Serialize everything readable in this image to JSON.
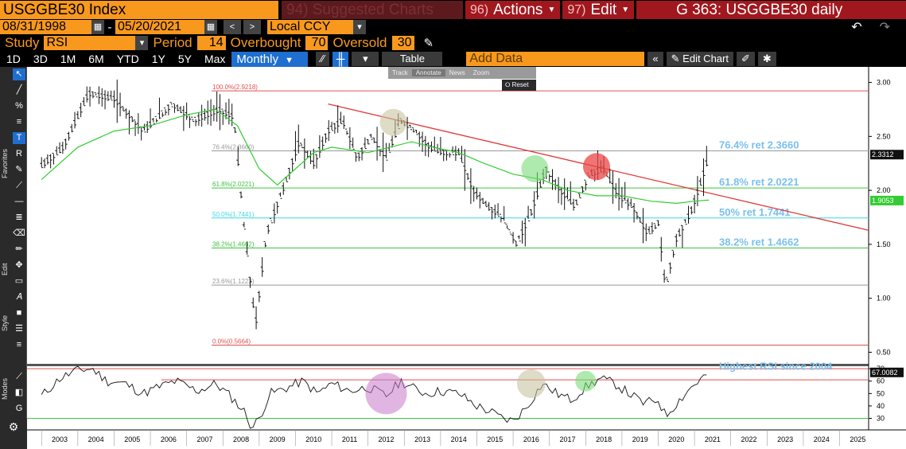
{
  "header": {
    "ticker": "USGGBE30 Index",
    "suggested": "94) Suggested Charts",
    "actions_num": "96)",
    "actions_label": "Actions",
    "edit_num": "97)",
    "edit_label": "Edit",
    "chart_id": "G 363: USGGBE30 daily"
  },
  "dates": {
    "start": "08/31/1998",
    "sep": "-",
    "end": "05/20/2021",
    "currency": "Local CCY"
  },
  "study": {
    "study_label": "Study",
    "study_value": "RSI",
    "period_label": "Period",
    "period_value": "14",
    "overbought_label": "Overbought",
    "overbought_value": "70",
    "oversold_label": "Oversold",
    "oversold_value": "30"
  },
  "toolbar": {
    "ranges": [
      "1D",
      "3D",
      "1M",
      "6M",
      "YTD",
      "1Y",
      "5Y",
      "Max"
    ],
    "frequency": "Monthly",
    "table_label": "Table",
    "add_data_placeholder": "Add Data",
    "edit_chart_label": "Edit Chart"
  },
  "floating_bar": {
    "track": "Track",
    "annotate": "Annotate",
    "news": "News",
    "zoom": "Zoom",
    "reset": "Reset"
  },
  "sidebar": {
    "favorites_label": "Favorites",
    "edit_label": "Edit",
    "style_label": "Style",
    "modes_label": "Modes"
  },
  "chart_data": {
    "type": "candlestick",
    "xlabels": [
      "2003",
      "2004",
      "2005",
      "2006",
      "2007",
      "2008",
      "2009",
      "2010",
      "2011",
      "2012",
      "2013",
      "2014",
      "2015",
      "2016",
      "2017",
      "2018",
      "2019",
      "2020",
      "2021",
      "2022",
      "2023",
      "2024",
      "2025"
    ],
    "price_ticks": [
      "3.00",
      "2.50",
      "2.00",
      "1.50",
      "1.00",
      "0.50"
    ],
    "rsi_ticks": [
      "70",
      "60",
      "50",
      "40",
      "30"
    ],
    "fib_levels": [
      {
        "label": "100.0%(2.9218)",
        "value": 2.9218,
        "color": "#e05050"
      },
      {
        "label": "76.4%(2.3660)",
        "value": 2.366,
        "color": "#999999"
      },
      {
        "label": "61.8%(2.0221)",
        "value": 2.0221,
        "color": "#3ec43e"
      },
      {
        "label": "50.0%(1.7441)",
        "value": 1.7441,
        "color": "#3ad8e8"
      },
      {
        "label": "38.2%(1.4662)",
        "value": 1.4662,
        "color": "#3ec43e"
      },
      {
        "label": "23.6%(1.1223)",
        "value": 1.1223,
        "color": "#999999"
      },
      {
        "label": "0.0%(0.5664)",
        "value": 0.5664,
        "color": "#e05050"
      }
    ],
    "ret_annotations": [
      {
        "text": "76.4% ret 2.3660",
        "value": 2.366
      },
      {
        "text": "61.8% ret 2.0221",
        "value": 2.0221
      },
      {
        "text": "50% ret 1.7441",
        "value": 1.7441
      },
      {
        "text": "38.2% ret 1.4662",
        "value": 1.4662
      }
    ],
    "last_price": "2.3312",
    "ma_price": "1.9053",
    "last_rsi": "67.0082",
    "rsi_annotation": "Highest RSI since 2004",
    "price_series": [
      [
        2003.0,
        2.23
      ],
      [
        2003.6,
        2.4
      ],
      [
        2004.3,
        2.9
      ],
      [
        2005.0,
        2.85
      ],
      [
        2005.8,
        2.55
      ],
      [
        2006.6,
        2.8
      ],
      [
        2007.2,
        2.65
      ],
      [
        2007.9,
        2.75
      ],
      [
        2008.3,
        2.68
      ],
      [
        2008.6,
        1.6
      ],
      [
        2008.9,
        0.75
      ],
      [
        2009.2,
        1.6
      ],
      [
        2009.7,
        2.05
      ],
      [
        2010.1,
        2.45
      ],
      [
        2010.5,
        2.25
      ],
      [
        2010.9,
        2.55
      ],
      [
        2011.3,
        2.65
      ],
      [
        2011.7,
        2.3
      ],
      [
        2012.1,
        2.5
      ],
      [
        2012.5,
        2.3
      ],
      [
        2012.9,
        2.65
      ],
      [
        2013.3,
        2.55
      ],
      [
        2013.7,
        2.4
      ],
      [
        2014.1,
        2.35
      ],
      [
        2014.5,
        2.35
      ],
      [
        2014.9,
        2.0
      ],
      [
        2015.3,
        1.85
      ],
      [
        2015.7,
        1.75
      ],
      [
        2016.1,
        1.5
      ],
      [
        2016.5,
        1.8
      ],
      [
        2016.9,
        2.2
      ],
      [
        2017.3,
        2.0
      ],
      [
        2017.7,
        1.85
      ],
      [
        2018.1,
        2.15
      ],
      [
        2018.5,
        2.2
      ],
      [
        2018.9,
        1.95
      ],
      [
        2019.3,
        1.85
      ],
      [
        2019.7,
        1.6
      ],
      [
        2020.0,
        1.7
      ],
      [
        2020.2,
        1.1
      ],
      [
        2020.5,
        1.55
      ],
      [
        2020.9,
        1.8
      ],
      [
        2021.2,
        2.1
      ],
      [
        2021.4,
        2.33
      ]
    ],
    "ma_series": [
      [
        2003.0,
        2.1
      ],
      [
        2004.0,
        2.4
      ],
      [
        2005.0,
        2.55
      ],
      [
        2006.0,
        2.6
      ],
      [
        2007.0,
        2.7
      ],
      [
        2007.8,
        2.75
      ],
      [
        2008.4,
        2.6
      ],
      [
        2009.0,
        2.2
      ],
      [
        2009.5,
        2.05
      ],
      [
        2010.0,
        2.2
      ],
      [
        2010.5,
        2.35
      ],
      [
        2011.0,
        2.4
      ],
      [
        2012.0,
        2.35
      ],
      [
        2012.6,
        2.4
      ],
      [
        2013.2,
        2.45
      ],
      [
        2013.8,
        2.4
      ],
      [
        2014.5,
        2.35
      ],
      [
        2015.2,
        2.25
      ],
      [
        2016.0,
        2.15
      ],
      [
        2016.8,
        2.1
      ],
      [
        2017.5,
        2.0
      ],
      [
        2018.3,
        1.95
      ],
      [
        2019.0,
        1.95
      ],
      [
        2019.8,
        1.9
      ],
      [
        2020.5,
        1.88
      ],
      [
        2021.0,
        1.9
      ],
      [
        2021.4,
        1.91
      ]
    ],
    "rsi_series": [
      [
        2003.0,
        48
      ],
      [
        2003.5,
        62
      ],
      [
        2004.0,
        69
      ],
      [
        2004.4,
        70
      ],
      [
        2004.8,
        60
      ],
      [
        2005.3,
        58
      ],
      [
        2005.8,
        50
      ],
      [
        2006.2,
        55
      ],
      [
        2006.7,
        60
      ],
      [
        2007.3,
        52
      ],
      [
        2007.8,
        58
      ],
      [
        2008.2,
        48
      ],
      [
        2008.6,
        35
      ],
      [
        2008.8,
        22
      ],
      [
        2009.0,
        30
      ],
      [
        2009.3,
        50
      ],
      [
        2009.8,
        55
      ],
      [
        2010.2,
        60
      ],
      [
        2010.6,
        50
      ],
      [
        2011.0,
        58
      ],
      [
        2011.5,
        52
      ],
      [
        2012.0,
        55
      ],
      [
        2012.5,
        48
      ],
      [
        2012.9,
        60
      ],
      [
        2013.2,
        55
      ],
      [
        2013.6,
        50
      ],
      [
        2014.0,
        52
      ],
      [
        2014.5,
        50
      ],
      [
        2015.0,
        40
      ],
      [
        2015.4,
        35
      ],
      [
        2015.7,
        30
      ],
      [
        2016.0,
        28
      ],
      [
        2016.4,
        40
      ],
      [
        2016.8,
        58
      ],
      [
        2017.2,
        50
      ],
      [
        2017.6,
        45
      ],
      [
        2018.0,
        55
      ],
      [
        2018.4,
        62
      ],
      [
        2018.8,
        58
      ],
      [
        2019.2,
        50
      ],
      [
        2019.6,
        42
      ],
      [
        2020.0,
        45
      ],
      [
        2020.2,
        32
      ],
      [
        2020.5,
        42
      ],
      [
        2020.9,
        55
      ],
      [
        2021.2,
        62
      ],
      [
        2021.4,
        67
      ]
    ]
  }
}
